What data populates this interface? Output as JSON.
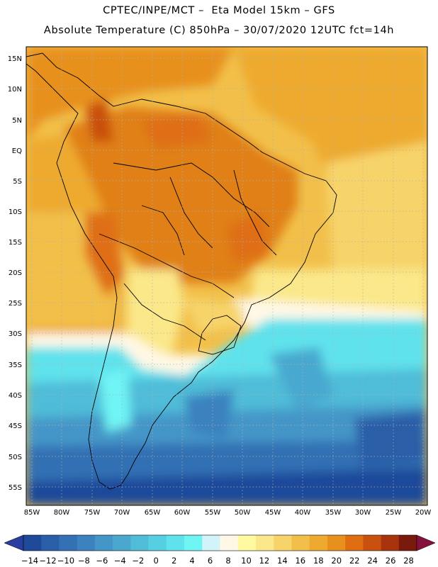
{
  "header": {
    "line1": "CPTEC/INPE/MCT –  Eta Model 15km – GFS",
    "line2": "Absolute Temperature (C) 850hPa – 30/07/2020 12UTC fct=14h"
  },
  "map": {
    "lat_labels": [
      "15N",
      "10N",
      "5N",
      "EQ",
      "5S",
      "10S",
      "15S",
      "20S",
      "25S",
      "30S",
      "35S",
      "40S",
      "45S",
      "50S",
      "55S"
    ],
    "lon_labels": [
      "85W",
      "80W",
      "75W",
      "70W",
      "65W",
      "60W",
      "55W",
      "50W",
      "45W",
      "40W",
      "35W",
      "30W",
      "25W",
      "20W"
    ],
    "region": "South America"
  },
  "colorbar": {
    "labels": [
      "-14",
      "-12",
      "-10",
      "-8",
      "-6",
      "-4",
      "-2",
      "0",
      "2",
      "4",
      "6",
      "8",
      "10",
      "12",
      "14",
      "16",
      "18",
      "20",
      "22",
      "24",
      "26",
      "28"
    ],
    "colors": [
      "#1f4a9a",
      "#2a5ea8",
      "#3370b4",
      "#3b82bf",
      "#4496c8",
      "#4aa8cf",
      "#50bcd8",
      "#57cfe2",
      "#5fe2ec",
      "#6ff4f4",
      "#d2f4f8",
      "#fff8e6",
      "#fffaa0",
      "#fbe88a",
      "#f7d46a",
      "#f2c04a",
      "#eeaa2e",
      "#e8901e",
      "#df6e12",
      "#c9500f",
      "#a8340e",
      "#7a1a0c"
    ],
    "under_color": "#2b3d9e",
    "over_color": "#85123c"
  }
}
